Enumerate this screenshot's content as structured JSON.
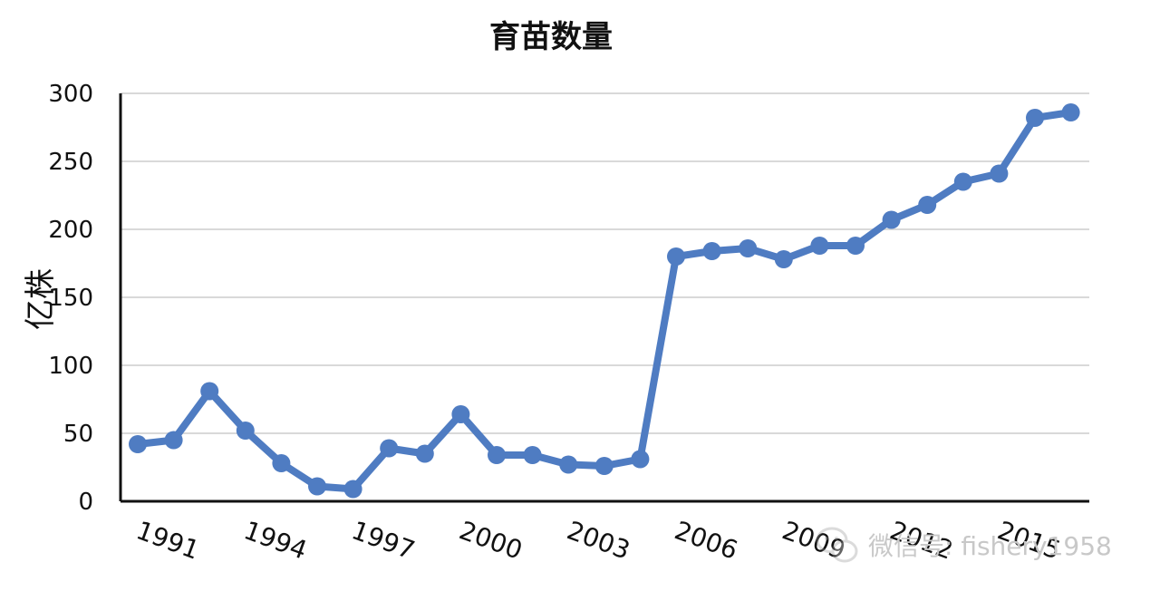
{
  "chart_data": {
    "type": "line",
    "title": "育苗数量",
    "ylabel": "亿株",
    "xlabel": "",
    "ylim": [
      0,
      300
    ],
    "yticks": [
      0,
      50,
      100,
      150,
      200,
      250,
      300
    ],
    "grid": true,
    "color": "#4f7cc2",
    "x": [
      1991,
      1992,
      1993,
      1994,
      1995,
      1996,
      1997,
      1998,
      1999,
      2000,
      2001,
      2002,
      2003,
      2004,
      2005,
      2006,
      2007,
      2008,
      2009,
      2010,
      2011,
      2012,
      2013,
      2014,
      2015,
      2016,
      2017
    ],
    "xtick_labels": [
      "1991",
      "1994",
      "1997",
      "2000",
      "2003",
      "2006",
      "2009",
      "2012",
      "2015"
    ],
    "series": [
      {
        "values": [
          42,
          45,
          81,
          52,
          28,
          11,
          9,
          39,
          35,
          64,
          34,
          34,
          27,
          26,
          31,
          180,
          184,
          186,
          178,
          188,
          188,
          207,
          218,
          235,
          241,
          282,
          286
        ]
      }
    ]
  },
  "watermark": {
    "icon": "wechat-icon",
    "text": "微信号: fishery1958"
  }
}
